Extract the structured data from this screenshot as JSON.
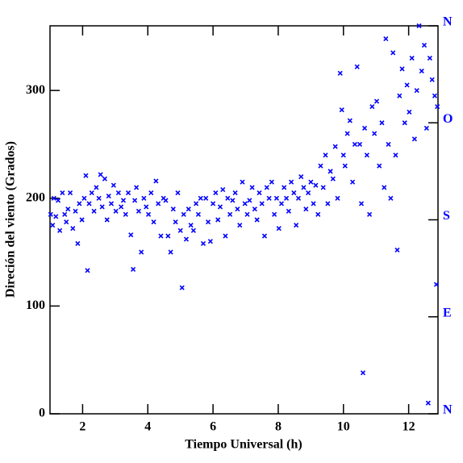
{
  "chart_data": {
    "type": "scatter",
    "xlabel": "Tiempo Universal (h)",
    "ylabel": "Direción del viento (Grados)",
    "color": "#0000ff",
    "xlim": [
      1,
      12.9
    ],
    "ylim": [
      0,
      360
    ],
    "xticks": [
      2,
      4,
      6,
      8,
      10,
      12
    ],
    "yticks": [
      0,
      100,
      200,
      300
    ],
    "y2lim": [
      0,
      360
    ],
    "y2ticks": [
      {
        "value": 0,
        "label": "N"
      },
      {
        "value": 90,
        "label": "E"
      },
      {
        "value": 180,
        "label": "S"
      },
      {
        "value": 270,
        "label": "O"
      },
      {
        "value": 360,
        "label": "N"
      }
    ],
    "x": [
      1.02,
      1.08,
      1.12,
      1.18,
      1.25,
      1.3,
      1.38,
      1.45,
      1.5,
      1.55,
      1.62,
      1.7,
      1.78,
      1.85,
      1.9,
      1.98,
      2.05,
      2.1,
      2.15,
      2.2,
      2.28,
      2.35,
      2.42,
      2.5,
      2.55,
      2.6,
      2.68,
      2.75,
      2.8,
      2.88,
      2.95,
      3.02,
      3.1,
      3.18,
      3.25,
      3.32,
      3.4,
      3.48,
      3.55,
      3.6,
      3.65,
      3.72,
      3.8,
      3.88,
      3.95,
      4.02,
      4.1,
      4.18,
      4.25,
      4.32,
      4.4,
      4.48,
      4.55,
      4.62,
      4.7,
      4.78,
      4.85,
      4.92,
      5.0,
      5.05,
      5.1,
      5.18,
      5.25,
      5.32,
      5.4,
      5.48,
      5.55,
      5.62,
      5.7,
      5.78,
      5.85,
      5.92,
      6.0,
      6.08,
      6.15,
      6.22,
      6.3,
      6.38,
      6.45,
      6.52,
      6.6,
      6.68,
      6.75,
      6.82,
      6.9,
      6.98,
      7.05,
      7.12,
      7.2,
      7.28,
      7.35,
      7.42,
      7.5,
      7.58,
      7.65,
      7.72,
      7.8,
      7.88,
      7.95,
      8.02,
      8.1,
      8.18,
      8.25,
      8.32,
      8.4,
      8.48,
      8.55,
      8.62,
      8.7,
      8.78,
      8.85,
      8.92,
      9.0,
      9.08,
      9.15,
      9.22,
      9.3,
      9.38,
      9.45,
      9.52,
      9.6,
      9.68,
      9.75,
      9.82,
      9.9,
      9.95,
      10.0,
      10.05,
      10.12,
      10.2,
      10.28,
      10.35,
      10.42,
      10.5,
      10.55,
      10.6,
      10.65,
      10.72,
      10.8,
      10.88,
      10.95,
      11.02,
      11.1,
      11.18,
      11.25,
      11.3,
      11.38,
      11.45,
      11.52,
      11.6,
      11.65,
      11.72,
      11.8,
      11.88,
      11.95,
      12.02,
      12.1,
      12.18,
      12.25,
      12.32,
      12.4,
      12.48,
      12.55,
      12.6,
      12.65,
      12.72,
      12.8,
      12.85,
      12.88
    ],
    "values": [
      185,
      175,
      200,
      183,
      198,
      170,
      205,
      185,
      178,
      190,
      205,
      172,
      188,
      158,
      195,
      180,
      200,
      221,
      133,
      195,
      205,
      188,
      210,
      200,
      222,
      192,
      218,
      180,
      202,
      195,
      212,
      188,
      205,
      192,
      198,
      185,
      205,
      166,
      134,
      198,
      210,
      188,
      150,
      200,
      192,
      185,
      205,
      178,
      216,
      195,
      165,
      200,
      198,
      165,
      150,
      190,
      178,
      205,
      170,
      117,
      185,
      162,
      190,
      175,
      170,
      195,
      185,
      200,
      158,
      200,
      178,
      160,
      195,
      205,
      180,
      192,
      208,
      165,
      200,
      185,
      198,
      205,
      190,
      175,
      215,
      195,
      185,
      198,
      210,
      190,
      180,
      205,
      195,
      165,
      210,
      200,
      215,
      185,
      200,
      172,
      195,
      210,
      200,
      188,
      215,
      205,
      175,
      200,
      220,
      210,
      190,
      205,
      215,
      195,
      212,
      185,
      230,
      210,
      240,
      195,
      225,
      218,
      248,
      200,
      316,
      282,
      240,
      230,
      260,
      272,
      215,
      250,
      322,
      250,
      195,
      38,
      265,
      240,
      185,
      285,
      260,
      290,
      230,
      270,
      210,
      348,
      250,
      200,
      335,
      240,
      152,
      295,
      320,
      270,
      305,
      280,
      330,
      255,
      300,
      360,
      318,
      342,
      265,
      10,
      330,
      310,
      295,
      120,
      285
    ]
  }
}
